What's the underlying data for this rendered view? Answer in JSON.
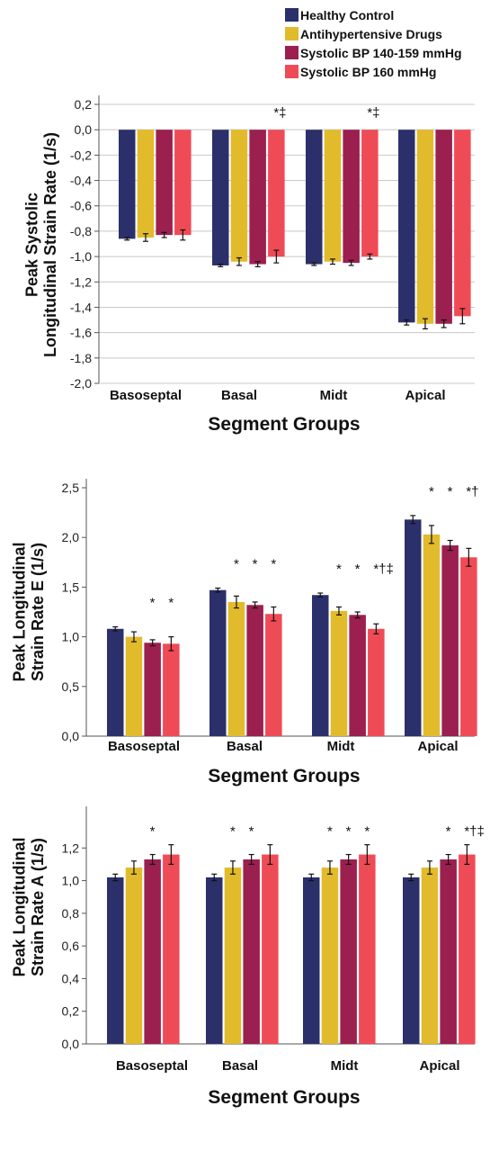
{
  "legend": {
    "items": [
      {
        "label": "Healthy Control",
        "color": "#2b306b"
      },
      {
        "label": "Antihypertensive Drugs",
        "color": "#e2bb2c"
      },
      {
        "label": "Systolic BP 140-159 mmHg",
        "color": "#9b1f4f"
      },
      {
        "label": "Systolic BP  160 mmHg",
        "color": "#ef4b56"
      }
    ]
  },
  "chart_data": [
    {
      "type": "bar",
      "title": "",
      "ylabel": "Peak Systolic Longitudinal Strain Rate (1/s)",
      "xlabel": "Segment Groups",
      "ylim": [
        -2.0,
        0.2
      ],
      "yticks": [
        "0,2",
        "0,0",
        "-0,2",
        "-0,4",
        "-0,6",
        "-0,8",
        "-1,0",
        "-1,2",
        "-1,4",
        "-1,6",
        "-1,8",
        "-2,0"
      ],
      "grid": true,
      "categories": [
        "Basoseptal",
        "Basal",
        "Midt",
        "Apical"
      ],
      "series": [
        {
          "name": "Healthy Control",
          "values": [
            -0.86,
            -1.07,
            -1.06,
            -1.52
          ],
          "errors": [
            0.01,
            0.01,
            0.01,
            0.02
          ]
        },
        {
          "name": "Antihypertensive Drugs",
          "values": [
            -0.85,
            -1.04,
            -1.04,
            -1.53
          ],
          "errors": [
            0.03,
            0.03,
            0.02,
            0.04
          ]
        },
        {
          "name": "Systolic BP 140-159 mmHg",
          "values": [
            -0.83,
            -1.06,
            -1.05,
            -1.53
          ],
          "errors": [
            0.02,
            0.02,
            0.02,
            0.03
          ]
        },
        {
          "name": "Systolic BP  160 mmHg",
          "values": [
            -0.83,
            -1.0,
            -1.0,
            -1.47
          ],
          "errors": [
            0.04,
            0.05,
            0.02,
            0.06
          ]
        }
      ],
      "annotations": [
        {
          "text": "*‡",
          "category": "Basal",
          "series": 3
        },
        {
          "text": "*‡",
          "category": "Midt",
          "series": 3
        }
      ]
    },
    {
      "type": "bar",
      "title": "",
      "ylabel": "Peak Longitudinal Strain Rate E (1/s)",
      "xlabel": "Segment Groups",
      "ylim": [
        0.0,
        2.5
      ],
      "yticks": [
        "0,0",
        "0,5",
        "1,0",
        "1,5",
        "2,0",
        "2,5"
      ],
      "grid": false,
      "categories": [
        "Basoseptal",
        "Basal",
        "Midt",
        "Apical"
      ],
      "series": [
        {
          "name": "Healthy Control",
          "values": [
            1.08,
            1.47,
            1.42,
            2.18
          ],
          "errors": [
            0.02,
            0.02,
            0.02,
            0.04
          ]
        },
        {
          "name": "Antihypertensive Drugs",
          "values": [
            1.0,
            1.35,
            1.26,
            2.03
          ],
          "errors": [
            0.05,
            0.06,
            0.04,
            0.09
          ]
        },
        {
          "name": "Systolic BP 140-159 mmHg",
          "values": [
            0.94,
            1.32,
            1.22,
            1.92
          ],
          "errors": [
            0.03,
            0.03,
            0.03,
            0.05
          ]
        },
        {
          "name": "Systolic BP  160 mmHg",
          "values": [
            0.93,
            1.23,
            1.08,
            1.8
          ],
          "errors": [
            0.07,
            0.07,
            0.05,
            0.09
          ]
        }
      ],
      "annotations": [
        {
          "text": "*",
          "category": "Basoseptal",
          "series": 2
        },
        {
          "text": "*",
          "category": "Basoseptal",
          "series": 3
        },
        {
          "text": "*",
          "category": "Basal",
          "series": 1
        },
        {
          "text": "*",
          "category": "Basal",
          "series": 2
        },
        {
          "text": "*",
          "category": "Basal",
          "series": 3
        },
        {
          "text": "*",
          "category": "Midt",
          "series": 1
        },
        {
          "text": "*",
          "category": "Midt",
          "series": 2
        },
        {
          "text": "*†‡",
          "category": "Midt",
          "series": 3
        },
        {
          "text": "*",
          "category": "Apical",
          "series": 1
        },
        {
          "text": "*",
          "category": "Apical",
          "series": 2
        },
        {
          "text": "*†",
          "category": "Apical",
          "series": 3
        }
      ]
    },
    {
      "type": "bar",
      "title": "",
      "ylabel": "Peak Longitudinal Strain Rate A (1/s)",
      "xlabel": "Segment Groups",
      "ylim": [
        0.0,
        1.4
      ],
      "yticks": [
        "0,0",
        "0,2",
        "0,4",
        "0,6",
        "0,8",
        "1,0",
        "1,2"
      ],
      "grid": false,
      "categories": [
        "Basoseptal",
        "Basal",
        "Midt",
        "Apical"
      ],
      "series": [
        {
          "name": "Healthy Control",
          "values": [
            1.02,
            1.02,
            1.02,
            1.02
          ],
          "errors": [
            0.02,
            0.02,
            0.02,
            0.02
          ]
        },
        {
          "name": "Antihypertensive Drugs",
          "values": [
            1.08,
            1.08,
            1.08,
            1.08
          ],
          "errors": [
            0.04,
            0.04,
            0.04,
            0.04
          ]
        },
        {
          "name": "Systolic BP 140-159 mmHg",
          "values": [
            1.13,
            1.13,
            1.13,
            1.13
          ],
          "errors": [
            0.03,
            0.03,
            0.03,
            0.03
          ]
        },
        {
          "name": "Systolic BP  160 mmHg",
          "values": [
            1.16,
            1.16,
            1.16,
            1.16
          ],
          "errors": [
            0.06,
            0.06,
            0.06,
            0.06
          ]
        }
      ],
      "annotations": [
        {
          "text": "*",
          "category": "Basoseptal",
          "series": 2
        },
        {
          "text": "*",
          "category": "Basal",
          "series": 1
        },
        {
          "text": "*",
          "category": "Basal",
          "series": 2
        },
        {
          "text": "*",
          "category": "Midt",
          "series": 1
        },
        {
          "text": "*",
          "category": "Midt",
          "series": 2
        },
        {
          "text": "*",
          "category": "Midt",
          "series": 3
        },
        {
          "text": "*",
          "category": "Apical",
          "series": 2
        },
        {
          "text": "*†‡",
          "category": "Apical",
          "series": 3
        }
      ]
    }
  ]
}
